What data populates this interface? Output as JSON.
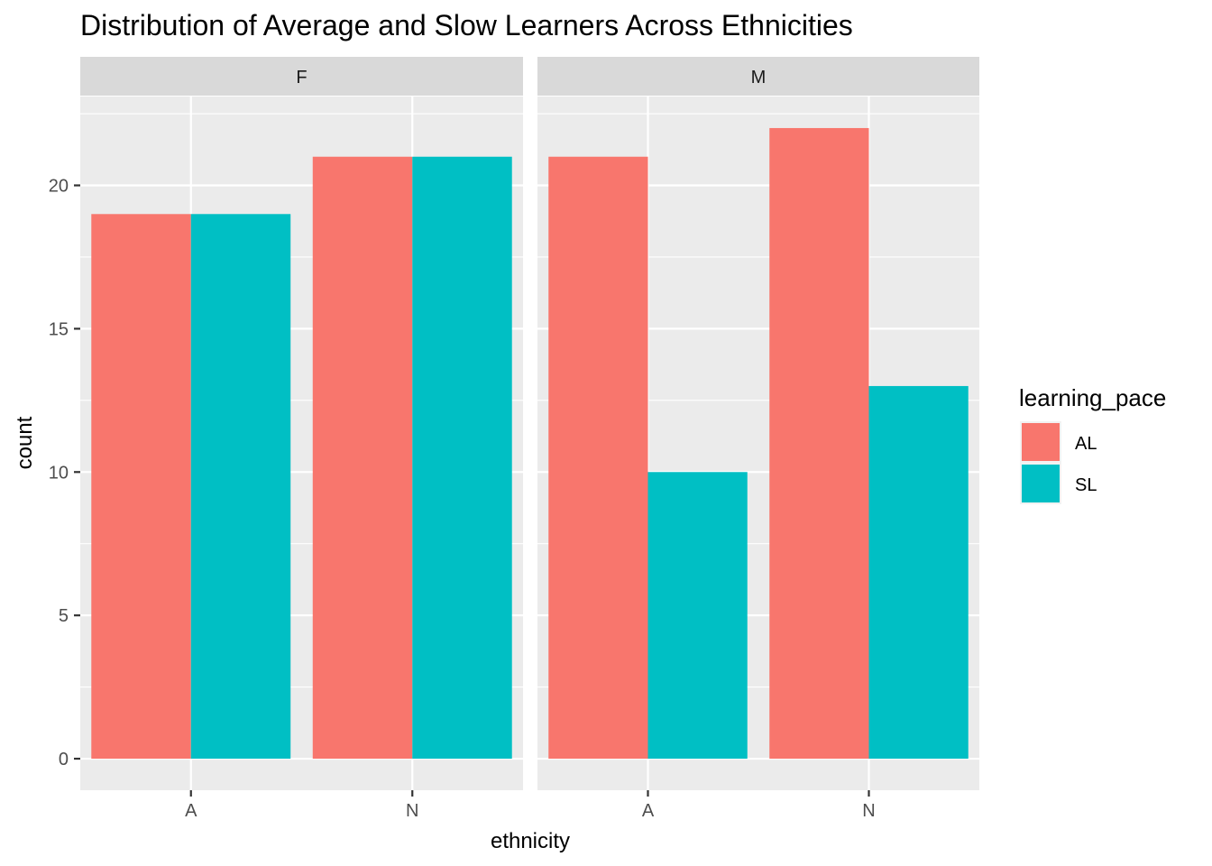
{
  "chart_data": {
    "type": "bar",
    "title": "Distribution of Average and Slow Learners Across Ethnicities",
    "xlabel": "ethnicity",
    "ylabel": "count",
    "ylim": [
      -1.1,
      23.1
    ],
    "yticks": [
      0,
      5,
      10,
      15,
      20
    ],
    "grid": true,
    "legend": {
      "title": "learning_pace",
      "position": "right",
      "entries": [
        {
          "label": "AL",
          "color": "#F8766D"
        },
        {
          "label": "SL",
          "color": "#00BFC4"
        }
      ]
    },
    "categories": [
      "A",
      "N"
    ],
    "facets": [
      {
        "label": "F",
        "series": [
          {
            "name": "AL",
            "values": [
              19,
              21
            ]
          },
          {
            "name": "SL",
            "values": [
              19,
              21
            ]
          }
        ]
      },
      {
        "label": "M",
        "series": [
          {
            "name": "AL",
            "values": [
              21,
              22
            ]
          },
          {
            "name": "SL",
            "values": [
              10,
              13
            ]
          }
        ]
      }
    ]
  },
  "colors": {
    "panel_background": "#EBEBEB",
    "strip_background": "#D9D9D9",
    "grid": "#FFFFFF",
    "AL": "#F8766D",
    "SL": "#00BFC4"
  }
}
